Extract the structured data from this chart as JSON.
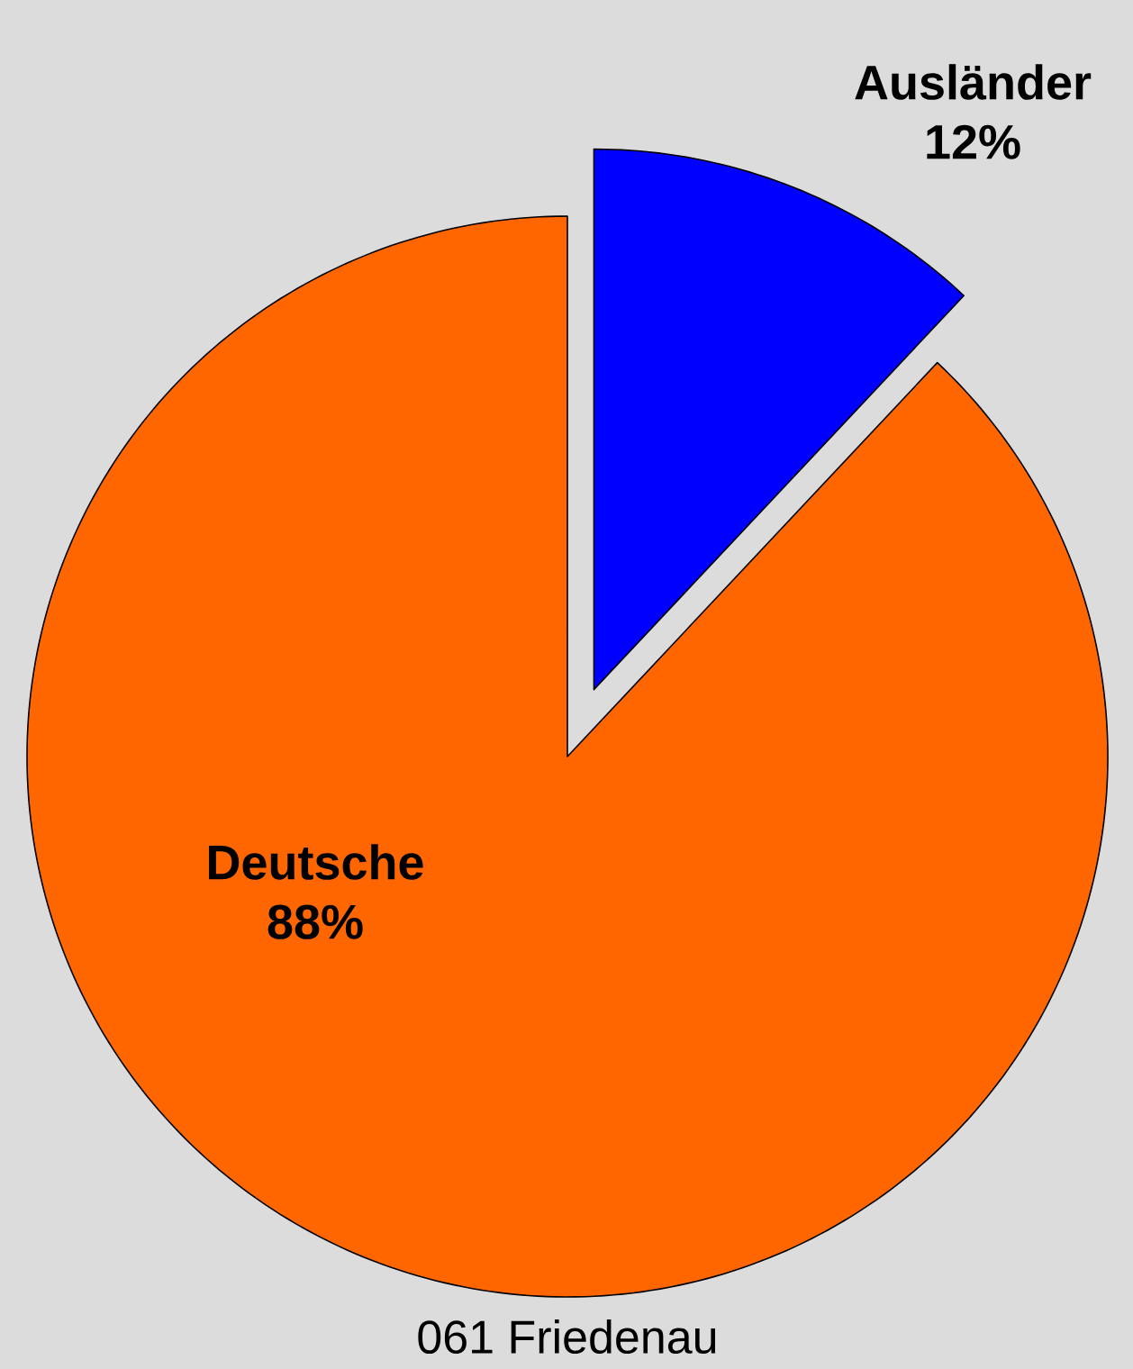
{
  "chart_data": {
    "type": "pie",
    "title": "061 Friedenau",
    "categories": [
      "Ausländer",
      "Deutsche"
    ],
    "values": [
      12,
      88
    ],
    "value_labels": [
      "12%",
      "88%"
    ],
    "colors": [
      "#0000ff",
      "#ff6600"
    ]
  }
}
